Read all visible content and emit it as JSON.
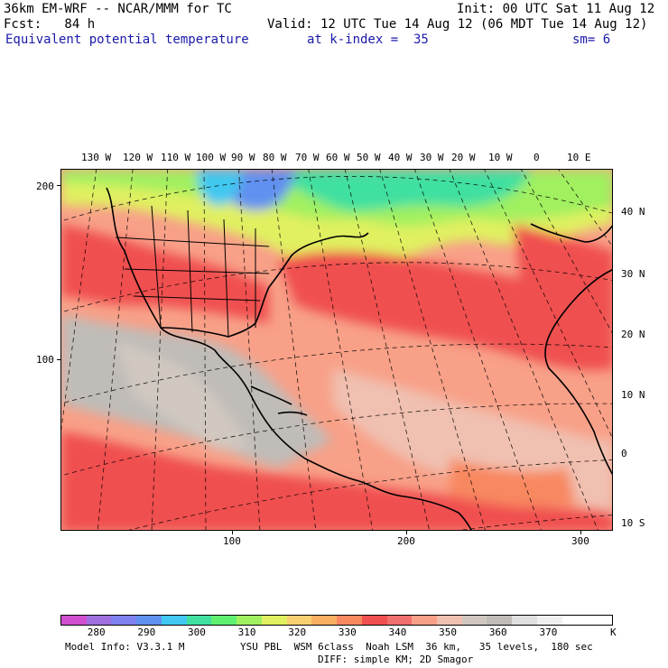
{
  "header": {
    "title_left": "36km EM-WRF -- NCAR/MMM for TC",
    "init": "Init: 00 UTC Sat 11 Aug 12",
    "fcst": "Fcst:   84 h",
    "valid": "Valid: 12 UTC Tue 14 Aug 12 (06 MDT Tue 14 Aug 12)",
    "field": "Equivalent potential temperature",
    "kindex": "at k-index =  35",
    "sm": "sm= 6"
  },
  "map": {
    "lon_labels": [
      "130 W",
      "120 W",
      "110 W",
      "100 W",
      "90 W",
      "80 W",
      "70 W",
      "60 W",
      "50 W",
      "40 W",
      "30 W",
      "20 W",
      "10 W",
      "0",
      "10 E"
    ],
    "lat_labels": [
      "40 N",
      "30 N",
      "20 N",
      "10 N",
      "0",
      "10 S"
    ],
    "y_grid_labels": [
      "200",
      "100"
    ],
    "x_grid_labels": [
      "100",
      "200",
      "300"
    ]
  },
  "colorbar": {
    "labels": [
      "280",
      "290",
      "300",
      "310",
      "320",
      "330",
      "340",
      "350",
      "360",
      "370"
    ],
    "unit": "K",
    "colors": [
      "#d050d0",
      "#a070e0",
      "#8080f0",
      "#6090f0",
      "#40c8f0",
      "#40e0a0",
      "#60f070",
      "#a0f060",
      "#e0f060",
      "#f8d070",
      "#f8b060",
      "#f88860",
      "#f05050",
      "#f07070",
      "#f8a088",
      "#f0c0b0",
      "#d0c8c0",
      "#c0bcb8",
      "#e0e0e0",
      "#f0f0f0",
      "#ffffff",
      "#ffffff"
    ]
  },
  "footer": {
    "model": "Model Info: V3.3.1 M",
    "physics1": "YSU PBL  WSM 6class  Noah LSM  36 km,   35 levels,  180 sec",
    "physics2": "DIFF: simple KM; 2D Smagor"
  }
}
